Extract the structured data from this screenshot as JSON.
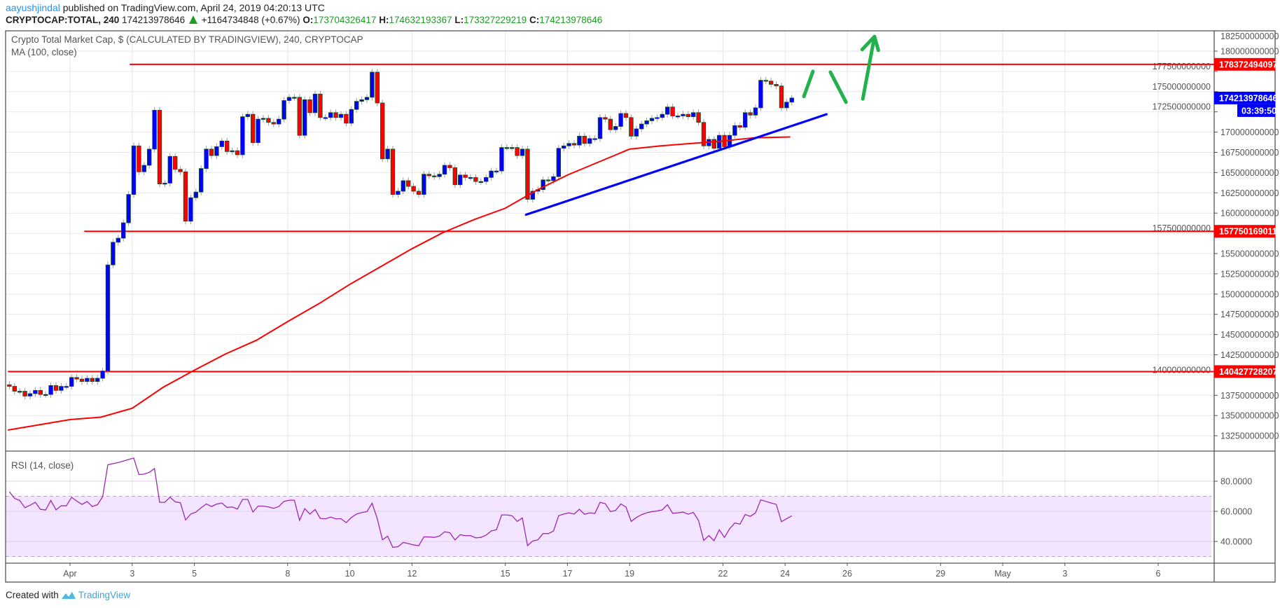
{
  "header": {
    "author": "aayushjindal",
    "published": "published on TradingView.com, April 24, 2019 04:20:13 UTC"
  },
  "ticker": {
    "symbol": "CRYPTOCAP:TOTAL, 240",
    "last": "174213978646",
    "change": "+1164734848 (+0.67%)",
    "o_label": "O:",
    "o": "173704326417",
    "h_label": "H:",
    "h": "174632193367",
    "l_label": "L:",
    "l": "173327229219",
    "c_label": "C:",
    "c": "174213978646"
  },
  "legend": {
    "title": "Crypto Total Market Cap, $ (CALCULATED BY TRADINGVIEW), 240, CRYPTOCAP",
    "ma": "MA (100, close)",
    "rsi": "RSI (14, close)"
  },
  "colors": {
    "up": "#0000ff",
    "down": "#ff0000",
    "ma": "#ff0000",
    "trendline": "#0000ff",
    "arrows": "#22b14c",
    "rsi": "#9c27b0",
    "rsi_band": "#f3e5ff",
    "link": "#2196f3",
    "positive": "#1e9e26"
  },
  "chart_data": [
    {
      "type": "candlestick",
      "interval": "240",
      "ylim": [
        131500000000,
        182500000000
      ],
      "grid": true,
      "y_ticks": [
        "182500000000",
        "180000000000",
        "177500000000",
        "175000000000",
        "172500000000",
        "170000000000",
        "167500000000",
        "165000000000",
        "162500000000",
        "160000000000",
        "157500000000",
        "155000000000",
        "152500000000",
        "150000000000",
        "147500000000",
        "145000000000",
        "142500000000",
        "140000000000",
        "137500000000",
        "135000000000",
        "132500000000"
      ],
      "x_ticks": [
        {
          "date": "2019-04-01",
          "label": "Apr"
        },
        {
          "date": "2019-04-03",
          "label": "3"
        },
        {
          "date": "2019-04-05",
          "label": "5"
        },
        {
          "date": "2019-04-08",
          "label": "8"
        },
        {
          "date": "2019-04-10",
          "label": "10"
        },
        {
          "date": "2019-04-12",
          "label": "12"
        },
        {
          "date": "2019-04-15",
          "label": "15"
        },
        {
          "date": "2019-04-17",
          "label": "17"
        },
        {
          "date": "2019-04-19",
          "label": "19"
        },
        {
          "date": "2019-04-22",
          "label": "22"
        },
        {
          "date": "2019-04-24",
          "label": "24"
        },
        {
          "date": "2019-04-26",
          "label": "26"
        },
        {
          "date": "2019-04-29",
          "label": "29"
        },
        {
          "date": "2019-05-01",
          "label": "May"
        },
        {
          "date": "2019-05-03",
          "label": "3"
        },
        {
          "date": "2019-05-06",
          "label": "6"
        }
      ],
      "closes_by_day": [
        {
          "date": "2019-03-30",
          "close": [
            138600000000.0,
            138000000000.0,
            138000000000.0,
            137400000000.0,
            137700000000.0,
            138100000000.0
          ]
        },
        {
          "date": "2019-03-31",
          "close": [
            137600000000.0,
            137600000000.0,
            138700000000.0,
            138100000000.0,
            138600000000.0,
            138600000000.0
          ]
        },
        {
          "date": "2019-04-01",
          "close": [
            139700000000.0,
            139500000000.0,
            139200000000.0,
            139600000000.0,
            139200000000.0,
            139600000000.0
          ]
        },
        {
          "date": "2019-04-02",
          "close": [
            140500000000.0,
            153600000000.0,
            156400000000.0,
            156900000000.0,
            158800000000.0,
            162300000000.0
          ]
        },
        {
          "date": "2019-04-03",
          "close": [
            168300000000.0,
            165100000000.0,
            165900000000.0,
            167900000000.0,
            172700000000.0,
            163600000000.0
          ]
        },
        {
          "date": "2019-04-04",
          "close": [
            163700000000.0,
            167000000000.0,
            165400000000.0,
            165100000000.0,
            159000000000.0,
            161900000000.0
          ]
        },
        {
          "date": "2019-04-05",
          "close": [
            162600000000.0,
            165500000000.0,
            167900000000.0,
            167100000000.0,
            168200000000.0,
            168900000000.0
          ]
        },
        {
          "date": "2019-04-06",
          "close": [
            167600000000.0,
            167700000000.0,
            167200000000.0,
            171900000000.0,
            172200000000.0,
            168700000000.0
          ]
        },
        {
          "date": "2019-04-07",
          "close": [
            171600000000.0,
            171700000000.0,
            171200000000.0,
            171000000000.0,
            171600000000.0,
            173900000000.0
          ]
        },
        {
          "date": "2019-04-08",
          "close": [
            174300000000.0,
            174300000000.0,
            169600000000.0,
            174000000000.0,
            172400000000.0,
            174700000000.0
          ]
        },
        {
          "date": "2019-04-09",
          "close": [
            171800000000.0,
            171800000000.0,
            172400000000.0,
            171800000000.0,
            172200000000.0,
            171100000000.0
          ]
        },
        {
          "date": "2019-04-10",
          "close": [
            172800000000.0,
            173800000000.0,
            174000000000.0,
            174300000000.0,
            177400000000.0,
            173600000000.0
          ]
        },
        {
          "date": "2019-04-11",
          "close": [
            166700000000.0,
            167900000000.0,
            162300000000.0,
            162700000000.0,
            164000000000.0,
            163300000000.0
          ]
        },
        {
          "date": "2019-04-12",
          "close": [
            162700000000.0,
            162300000000.0,
            164800000000.0,
            164600000000.0,
            164500000000.0,
            164800000000.0
          ]
        },
        {
          "date": "2019-04-13",
          "close": [
            165900000000.0,
            165600000000.0,
            163500000000.0,
            164700000000.0,
            164400000000.0,
            164400000000.0
          ]
        },
        {
          "date": "2019-04-14",
          "close": [
            163900000000.0,
            163900000000.0,
            164400000000.0,
            165200000000.0,
            165200000000.0,
            168100000000.0
          ]
        },
        {
          "date": "2019-04-15",
          "close": [
            168100000000.0,
            168100000000.0,
            167100000000.0,
            167900000000.0,
            161700000000.0,
            162700000000.0
          ]
        },
        {
          "date": "2019-04-16",
          "close": [
            162900000000.0,
            164100000000.0,
            164000000000.0,
            164500000000.0,
            168000000000.0,
            168300000000.0
          ]
        },
        {
          "date": "2019-04-17",
          "close": [
            168600000000.0,
            168400000000.0,
            169500000000.0,
            168600000000.0,
            169200000000.0,
            169200000000.0
          ]
        },
        {
          "date": "2019-04-18",
          "close": [
            171800000000.0,
            171600000000.0,
            170300000000.0,
            170700000000.0,
            172300000000.0,
            171800000000.0
          ]
        },
        {
          "date": "2019-04-19",
          "close": [
            169500000000.0,
            170400000000.0,
            171000000000.0,
            171400000000.0,
            171700000000.0,
            171800000000.0
          ]
        },
        {
          "date": "2019-04-20",
          "close": [
            172200000000.0,
            173100000000.0,
            172000000000.0,
            172000000000.0,
            172200000000.0,
            171900000000.0
          ]
        },
        {
          "date": "2019-04-21",
          "close": [
            172400000000.0,
            171200000000.0,
            168300000000.0,
            169100000000.0,
            168000000000.0,
            169600000000.0
          ]
        },
        {
          "date": "2019-04-22",
          "close": [
            168200000000.0,
            169600000000.0,
            170800000000.0,
            170600000000.0,
            172400000000.0,
            172100000000.0
          ]
        },
        {
          "date": "2019-04-23",
          "close": [
            173000000000.0,
            176400000000.0,
            176300000000.0,
            175900000000.0,
            175700000000.0,
            173000000000.0
          ]
        },
        {
          "date": "2019-04-24",
          "close": [
            173700000000.0,
            174213978646.0
          ]
        }
      ],
      "ma100": [
        [
          "2019-03-30T00:00",
          133200000000.0
        ],
        [
          "2019-04-01T00:00",
          134500000000.0
        ],
        [
          "2019-04-02T00:00",
          134800000000.0
        ],
        [
          "2019-04-03T00:00",
          135900000000.0
        ],
        [
          "2019-04-04T00:00",
          138500000000.0
        ],
        [
          "2019-04-05T00:00",
          140600000000.0
        ],
        [
          "2019-04-06T00:00",
          142600000000.0
        ],
        [
          "2019-04-07T00:00",
          144300000000.0
        ],
        [
          "2019-04-08T00:00",
          146600000000.0
        ],
        [
          "2019-04-09T00:00",
          148800000000.0
        ],
        [
          "2019-04-10T00:00",
          151200000000.0
        ],
        [
          "2019-04-11T00:00",
          153400000000.0
        ],
        [
          "2019-04-12T00:00",
          155600000000.0
        ],
        [
          "2019-04-13T00:00",
          157600000000.0
        ],
        [
          "2019-04-14T00:00",
          159200000000.0
        ],
        [
          "2019-04-15T00:00",
          160600000000.0
        ],
        [
          "2019-04-16T00:00",
          162800000000.0
        ],
        [
          "2019-04-17T00:00",
          164700000000.0
        ],
        [
          "2019-04-18T00:00",
          166300000000.0
        ],
        [
          "2019-04-19T00:00",
          167900000000.0
        ],
        [
          "2019-04-20T00:00",
          168300000000.0
        ],
        [
          "2019-04-21T00:00",
          168600000000.0
        ],
        [
          "2019-04-22T00:00",
          168900000000.0
        ],
        [
          "2019-04-23T00:00",
          169300000000.0
        ],
        [
          "2019-04-24T04:00",
          169400000000.0
        ]
      ],
      "price_lines": [
        {
          "value": 178372494097,
          "label": "178372494097",
          "from": "2019-04-02T22:00"
        },
        {
          "value": 157750169011,
          "label": "157750169011",
          "from": "2019-04-01T11:00"
        },
        {
          "value": 140427728207,
          "label": "140427728207",
          "from": "2019-03-30T00:00"
        }
      ],
      "last_price": {
        "value": 174213978646,
        "label": "174213978646",
        "countdown": "03:39:50"
      },
      "trendline": {
        "from": [
          "2019-04-15T16:00",
          159800000000.0
        ],
        "to": [
          "2019-04-25T08:00",
          172200000000.0
        ]
      },
      "arrows": [
        [
          [
            "2019-04-24T14:30",
            174400000000.0
          ],
          [
            "2019-04-24T21:30",
            177500000000.0
          ]
        ],
        [
          [
            "2019-04-25T11:00",
            177400000000.0
          ],
          [
            "2019-04-25T23:00",
            173700000000.0
          ]
        ],
        [
          [
            "2019-04-26T12:00",
            174100000000.0
          ],
          [
            "2019-04-26T21:00",
            181800000000.0
          ]
        ],
        [
          [
            "2019-04-26T11:30",
            180200000000.0
          ],
          [
            "2019-04-26T21:00",
            181800000000.0
          ],
          [
            "2019-04-27T00:00",
            180100000000.0
          ]
        ]
      ]
    },
    {
      "type": "line",
      "name": "RSI (14, close)",
      "ylim": [
        25,
        100
      ],
      "band": [
        30,
        70
      ],
      "y_ticks": [
        "80.0000",
        "60.0000",
        "40.0000"
      ],
      "rsi_by_day": [
        {
          "date": "2019-03-30",
          "rsi": [
            73.0,
            68.6,
            67.2,
            62.4,
            64.1,
            66.0
          ]
        },
        {
          "date": "2019-03-31",
          "rsi": [
            61.3,
            60.9,
            67.2,
            61.0,
            63.7,
            63.7
          ]
        },
        {
          "date": "2019-04-01",
          "rsi": [
            69.3,
            66.8,
            64.6,
            66.5,
            63.2,
            64.4
          ]
        },
        {
          "date": "2019-04-02",
          "rsi": [
            69.7,
            90.9,
            91.7,
            92.4,
            93.4,
            94.4
          ]
        },
        {
          "date": "2019-04-03",
          "rsi": [
            95.4,
            84.4,
            84.7,
            85.9,
            88.4,
            66.0
          ]
        },
        {
          "date": "2019-04-04",
          "rsi": [
            66.0,
            69.4,
            66.3,
            65.7,
            54.3,
            58.2
          ]
        },
        {
          "date": "2019-04-05",
          "rsi": [
            59.5,
            62.4,
            64.9,
            63.2,
            64.8,
            65.5
          ]
        },
        {
          "date": "2019-04-06",
          "rsi": [
            62.6,
            62.9,
            61.5,
            67.9,
            67.9,
            59.5
          ]
        },
        {
          "date": "2019-04-07",
          "rsi": [
            63.5,
            63.5,
            62.9,
            62.0,
            63.2,
            66.6
          ]
        },
        {
          "date": "2019-04-08",
          "rsi": [
            67.4,
            67.4,
            54.0,
            61.8,
            58.2,
            61.2
          ]
        },
        {
          "date": "2019-04-09",
          "rsi": [
            55.3,
            55.0,
            56.2,
            55.0,
            55.1,
            52.5
          ]
        },
        {
          "date": "2019-04-10",
          "rsi": [
            55.9,
            58.2,
            59.2,
            59.8,
            65.4,
            55.1
          ]
        },
        {
          "date": "2019-04-11",
          "rsi": [
            41.1,
            43.5,
            36.1,
            36.5,
            39.3,
            38.6
          ]
        },
        {
          "date": "2019-04-12",
          "rsi": [
            37.7,
            37.2,
            43.0,
            43.0,
            42.7,
            43.6
          ]
        },
        {
          "date": "2019-04-13",
          "rsi": [
            46.4,
            45.8,
            41.0,
            44.5,
            43.8,
            43.9
          ]
        },
        {
          "date": "2019-04-14",
          "rsi": [
            42.4,
            42.7,
            44.2,
            47.0,
            47.8,
            57.6
          ]
        },
        {
          "date": "2019-04-15",
          "rsi": [
            57.6,
            57.1,
            53.3,
            55.6,
            37.2,
            40.3
          ]
        },
        {
          "date": "2019-04-16",
          "rsi": [
            41.1,
            45.3,
            45.2,
            46.9,
            57.1,
            58.2
          ]
        },
        {
          "date": "2019-04-17",
          "rsi": [
            59.0,
            58.2,
            61.4,
            58.0,
            59.0,
            58.6
          ]
        },
        {
          "date": "2019-04-18",
          "rsi": [
            66.0,
            65.1,
            59.8,
            60.6,
            64.9,
            62.9
          ]
        },
        {
          "date": "2019-04-19",
          "rsi": [
            53.3,
            55.9,
            57.8,
            59.0,
            59.8,
            60.2
          ]
        },
        {
          "date": "2019-04-20",
          "rsi": [
            61.0,
            64.4,
            58.7,
            59.0,
            59.5,
            58.1
          ]
        },
        {
          "date": "2019-04-21",
          "rsi": [
            59.3,
            53.9,
            40.7,
            43.9,
            40.5,
            47.7
          ]
        },
        {
          "date": "2019-04-22",
          "rsi": [
            42.7,
            48.4,
            52.3,
            51.5,
            57.9,
            56.7
          ]
        },
        {
          "date": "2019-04-23",
          "rsi": [
            59.0,
            67.6,
            66.6,
            65.5,
            64.6,
            53.1
          ]
        },
        {
          "date": "2019-04-24",
          "rsi": [
            55.1,
            57.0
          ]
        }
      ]
    }
  ],
  "footer": {
    "created": "Created with",
    "brand": "TradingView"
  }
}
